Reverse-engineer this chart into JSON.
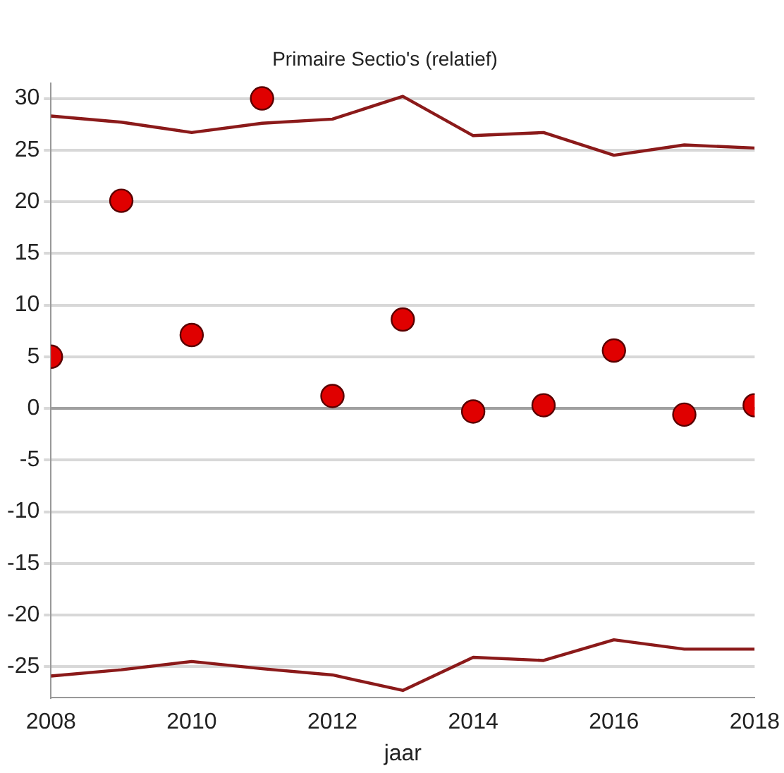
{
  "chart_data": {
    "type": "scatter",
    "title": "Primaire Sectio's (relatief)",
    "xlabel": "jaar",
    "x": [
      2008,
      2009,
      2010,
      2011,
      2012,
      2013,
      2014,
      2015,
      2016,
      2017,
      2018
    ],
    "series": [
      {
        "color": "#e00000",
        "marker": "circle",
        "values": [
          5,
          20.1,
          7.1,
          30,
          1.2,
          8.6,
          -0.3,
          0.3,
          5.6,
          -0.6,
          0.3
        ]
      },
      {
        "type": "line",
        "color": "#8b1a1a",
        "marker": "none",
        "line_style": "solid",
        "values": [
          28.3,
          27.7,
          26.7,
          27.6,
          28,
          30.2,
          26.4,
          26.7,
          24.5,
          25.5,
          25.2
        ]
      },
      {
        "type": "line",
        "color": "#8b1a1a",
        "marker": "none",
        "line_style": "solid",
        "values": [
          -25.9,
          -25.3,
          -24.5,
          -25.2,
          -25.8,
          -27.3,
          -24.1,
          -24.4,
          -22.4,
          -23.3,
          -23.3
        ]
      }
    ],
    "xlim": [
      2008,
      2018
    ],
    "xticks": [
      2008,
      2010,
      2012,
      2014,
      2016,
      2018
    ],
    "ylim": [
      -28,
      31.5
    ],
    "yticks": [
      -25,
      -20,
      -15,
      -10,
      -5,
      0,
      5,
      10,
      15,
      20,
      25,
      30
    ],
    "grid": "y",
    "legend": false,
    "ref_lines": [
      {
        "axis": "y",
        "value": 0,
        "color": "#a0a0a0"
      }
    ]
  }
}
